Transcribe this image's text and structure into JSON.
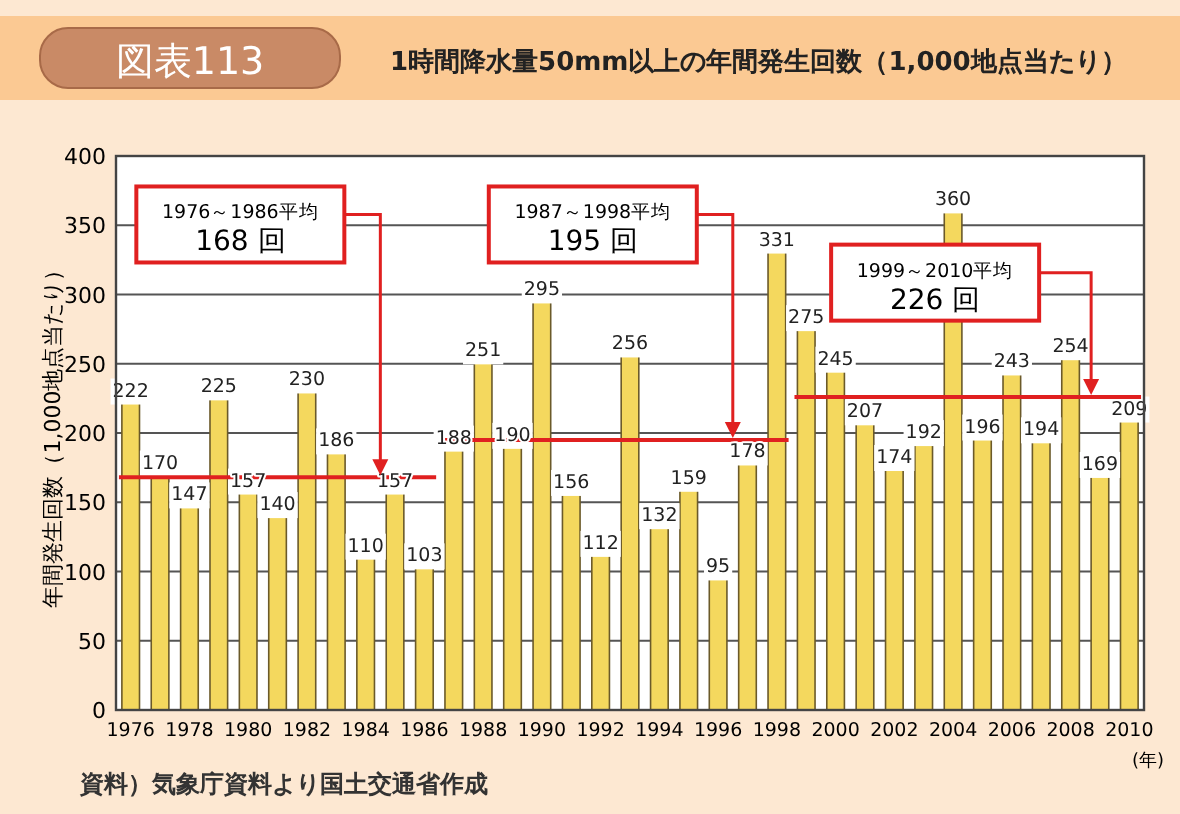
{
  "chart_data": {
    "type": "bar",
    "title": "図表113",
    "subtitle": "1時間降水量50mm以上の年間発生回数（1,000地点当たり）",
    "xlabel": "(年)",
    "ylabel": "年間発生回数（1,000地点当たり）",
    "x": [
      1976,
      1977,
      1978,
      1979,
      1980,
      1981,
      1982,
      1983,
      1984,
      1985,
      1986,
      1987,
      1988,
      1989,
      1990,
      1991,
      1992,
      1993,
      1994,
      1995,
      1996,
      1997,
      1998,
      1999,
      2000,
      2001,
      2002,
      2003,
      2004,
      2005,
      2006,
      2007,
      2008,
      2009,
      2010
    ],
    "series": [
      {
        "color": "#f4d85e",
        "values": [
          222,
          170,
          147,
          225,
          157,
          140,
          230,
          186,
          110,
          157,
          103,
          188,
          251,
          190,
          295,
          156,
          112,
          256,
          132,
          159,
          95,
          178,
          331,
          275,
          245,
          207,
          174,
          192,
          360,
          196,
          243,
          194,
          254,
          169,
          209
        ],
        "value_labels": [
          "222",
          "170",
          "147",
          "225",
          "157",
          "140",
          "230",
          "186",
          "110",
          "157",
          "103",
          "188",
          "251",
          "190",
          "295",
          "156",
          "112",
          "256",
          "132",
          "159",
          "95",
          "178",
          "331",
          "275",
          "245",
          "207",
          "174",
          "192",
          "360",
          "196",
          "243",
          "194",
          "254",
          "169",
          "209"
        ]
      },
      {
        "type": "line",
        "color": "#e02020",
        "x": [
          1975.6,
          1986.4
        ],
        "values": [
          168,
          168
        ]
      },
      {
        "type": "line",
        "color": "#e02020",
        "x": [
          1986.6,
          1998.4
        ],
        "values": [
          195,
          195
        ]
      },
      {
        "type": "line",
        "color": "#e02020",
        "x": [
          1998.6,
          2010.4
        ],
        "values": [
          226,
          226
        ]
      }
    ],
    "xlim": [
      1975.5,
      2010.5
    ],
    "xticks": [
      1976,
      1978,
      1980,
      1982,
      1984,
      1986,
      1988,
      1990,
      1992,
      1994,
      1996,
      1998,
      2000,
      2002,
      2004,
      2006,
      2008,
      2010
    ],
    "ylim": [
      0,
      400
    ],
    "yticks": [
      0,
      50,
      100,
      150,
      200,
      250,
      300,
      350,
      400
    ],
    "grid": "y",
    "annotations": [
      {
        "text": "1976～1986平均\n168 回",
        "x": 1984.5,
        "y": 168
      },
      {
        "text": "1987～1998平均\n195 回",
        "x": 1996.5,
        "y": 195
      },
      {
        "text": "1999～2010平均\n226 回",
        "x": 2008.7,
        "y": 226
      },
      "資料）気象庁資料より国土交通省作成"
    ]
  }
}
